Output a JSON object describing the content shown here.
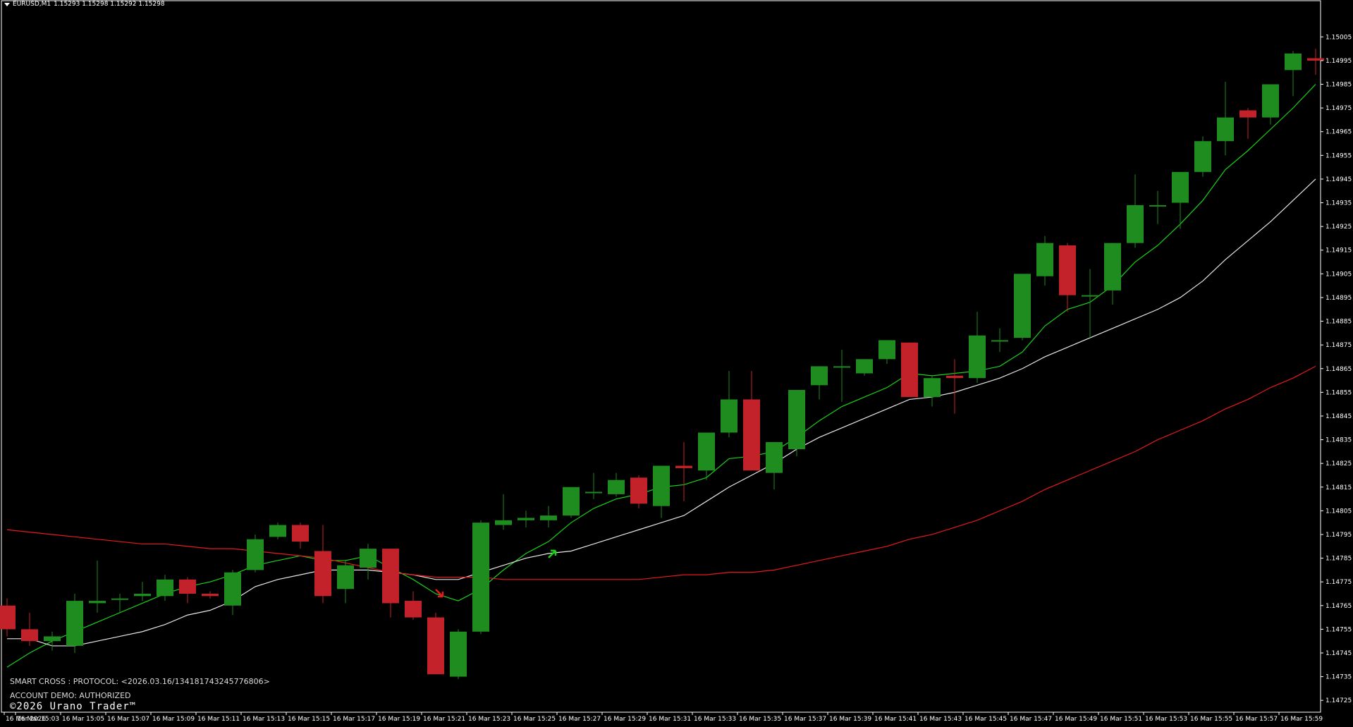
{
  "header": {
    "symbol": "EURUSD,M1",
    "ohlc": "1.15293 1.15298 1.15292 1.15298"
  },
  "footer": {
    "protocol": "SMART CROSS : PROTOCOL: <2026.03.16/13418174324577680​6>",
    "account": "ACCOUNT DEMO: AUTHORIZED",
    "copyright": "©2026 Urano Trader™"
  },
  "colors": {
    "background": "#000000",
    "axis": "#ffffff",
    "bull": "#1e8c1e",
    "bear": "#c4222a",
    "fast_ma": "#19d219",
    "mid_ma": "#e6e6e6",
    "slow_ma": "#e61a1a"
  },
  "chart_data": {
    "type": "candlestick",
    "symbol": "EURUSD",
    "timeframe": "M1",
    "y_ticks": [
      "1.15005",
      "1.14995",
      "1.14985",
      "1.14975",
      "1.14965",
      "1.14955",
      "1.14945",
      "1.14935",
      "1.14925",
      "1.14915",
      "1.14905",
      "1.14895",
      "1.14885",
      "1.14875",
      "1.14865",
      "1.14855",
      "1.14845",
      "1.14835",
      "1.14825",
      "1.14815",
      "1.14805",
      "1.14795",
      "1.14785",
      "1.14775",
      "1.14765",
      "1.14755",
      "1.14745",
      "1.14735",
      "1.14725"
    ],
    "x_ticks": [
      "16 Mar 2026",
      "16 Mar 15:03",
      "16 Mar 15:05",
      "16 Mar 15:07",
      "16 Mar 15:09",
      "16 Mar 15:11",
      "16 Mar 15:13",
      "16 Mar 15:15",
      "16 Mar 15:17",
      "16 Mar 15:19",
      "16 Mar 15:21",
      "16 Mar 15:23",
      "16 Mar 15:25",
      "16 Mar 15:27",
      "16 Mar 15:29",
      "16 Mar 15:31",
      "16 Mar 15:33",
      "16 Mar 15:35",
      "16 Mar 15:37",
      "16 Mar 15:39",
      "16 Mar 15:41",
      "16 Mar 15:43",
      "16 Mar 15:45",
      "16 Mar 15:47",
      "16 Mar 15:49",
      "16 Mar 15:51",
      "16 Mar 15:53",
      "16 Mar 15:55",
      "16 Mar 15:57",
      "16 Mar 15:59"
    ],
    "ylim": [
      1.1472,
      1.15017
    ],
    "candles": [
      {
        "o": 1.14765,
        "h": 1.14768,
        "l": 1.14752,
        "c": 1.14755
      },
      {
        "o": 1.14755,
        "h": 1.14762,
        "l": 1.14748,
        "c": 1.1475
      },
      {
        "o": 1.1475,
        "h": 1.14754,
        "l": 1.14746,
        "c": 1.14752
      },
      {
        "o": 1.14748,
        "h": 1.1477,
        "l": 1.14745,
        "c": 1.14767
      },
      {
        "o": 1.14766,
        "h": 1.14784,
        "l": 1.14762,
        "c": 1.14767
      },
      {
        "o": 1.14768,
        "h": 1.1477,
        "l": 1.14762,
        "c": 1.14768
      },
      {
        "o": 1.14769,
        "h": 1.14775,
        "l": 1.14767,
        "c": 1.1477
      },
      {
        "o": 1.14769,
        "h": 1.14778,
        "l": 1.14767,
        "c": 1.14776
      },
      {
        "o": 1.14776,
        "h": 1.14777,
        "l": 1.14766,
        "c": 1.1477
      },
      {
        "o": 1.1477,
        "h": 1.14771,
        "l": 1.14768,
        "c": 1.14769
      },
      {
        "o": 1.14765,
        "h": 1.1478,
        "l": 1.14761,
        "c": 1.14779
      },
      {
        "o": 1.1478,
        "h": 1.14795,
        "l": 1.14779,
        "c": 1.14793
      },
      {
        "o": 1.14794,
        "h": 1.148,
        "l": 1.14793,
        "c": 1.14799
      },
      {
        "o": 1.14799,
        "h": 1.148,
        "l": 1.14789,
        "c": 1.14792
      },
      {
        "o": 1.14788,
        "h": 1.14799,
        "l": 1.14766,
        "c": 1.14769
      },
      {
        "o": 1.14772,
        "h": 1.14784,
        "l": 1.14766,
        "c": 1.14782
      },
      {
        "o": 1.14781,
        "h": 1.14791,
        "l": 1.14776,
        "c": 1.14789
      },
      {
        "o": 1.14789,
        "h": 1.14789,
        "l": 1.1476,
        "c": 1.14766
      },
      {
        "o": 1.14767,
        "h": 1.14771,
        "l": 1.14759,
        "c": 1.1476
      },
      {
        "o": 1.1476,
        "h": 1.14762,
        "l": 1.14736,
        "c": 1.14736
      },
      {
        "o": 1.14735,
        "h": 1.14755,
        "l": 1.14734,
        "c": 1.14754
      },
      {
        "o": 1.14754,
        "h": 1.14801,
        "l": 1.14753,
        "c": 1.148
      },
      {
        "o": 1.14799,
        "h": 1.14812,
        "l": 1.14797,
        "c": 1.14801
      },
      {
        "o": 1.14801,
        "h": 1.14805,
        "l": 1.14798,
        "c": 1.14802
      },
      {
        "o": 1.14801,
        "h": 1.14807,
        "l": 1.14798,
        "c": 1.14803
      },
      {
        "o": 1.14803,
        "h": 1.14815,
        "l": 1.14802,
        "c": 1.14815
      },
      {
        "o": 1.14813,
        "h": 1.14821,
        "l": 1.1481,
        "c": 1.14813
      },
      {
        "o": 1.14812,
        "h": 1.14821,
        "l": 1.14811,
        "c": 1.14818
      },
      {
        "o": 1.14819,
        "h": 1.1482,
        "l": 1.14806,
        "c": 1.14808
      },
      {
        "o": 1.14807,
        "h": 1.14823,
        "l": 1.14802,
        "c": 1.14824
      },
      {
        "o": 1.14824,
        "h": 1.14834,
        "l": 1.14809,
        "c": 1.14823
      },
      {
        "o": 1.14822,
        "h": 1.14838,
        "l": 1.14818,
        "c": 1.14838
      },
      {
        "o": 1.14838,
        "h": 1.14864,
        "l": 1.14836,
        "c": 1.14852
      },
      {
        "o": 1.14852,
        "h": 1.14864,
        "l": 1.14822,
        "c": 1.14822
      },
      {
        "o": 1.14821,
        "h": 1.14834,
        "l": 1.14814,
        "c": 1.14834
      },
      {
        "o": 1.14831,
        "h": 1.14856,
        "l": 1.14828,
        "c": 1.14856
      },
      {
        "o": 1.14858,
        "h": 1.14866,
        "l": 1.14852,
        "c": 1.14866
      },
      {
        "o": 1.14866,
        "h": 1.14873,
        "l": 1.14851,
        "c": 1.14866
      },
      {
        "o": 1.14863,
        "h": 1.14869,
        "l": 1.14862,
        "c": 1.14869
      },
      {
        "o": 1.14869,
        "h": 1.14877,
        "l": 1.14867,
        "c": 1.14877
      },
      {
        "o": 1.14876,
        "h": 1.14876,
        "l": 1.14853,
        "c": 1.14853
      },
      {
        "o": 1.14853,
        "h": 1.14862,
        "l": 1.14849,
        "c": 1.14861
      },
      {
        "o": 1.14862,
        "h": 1.14869,
        "l": 1.14846,
        "c": 1.14861
      },
      {
        "o": 1.14861,
        "h": 1.14889,
        "l": 1.14859,
        "c": 1.14879
      },
      {
        "o": 1.14877,
        "h": 1.14882,
        "l": 1.14872,
        "c": 1.14877
      },
      {
        "o": 1.14878,
        "h": 1.14905,
        "l": 1.14877,
        "c": 1.14905
      },
      {
        "o": 1.14904,
        "h": 1.14921,
        "l": 1.149,
        "c": 1.14918
      },
      {
        "o": 1.14917,
        "h": 1.14918,
        "l": 1.14889,
        "c": 1.14896
      },
      {
        "o": 1.14896,
        "h": 1.14907,
        "l": 1.14878,
        "c": 1.14896
      },
      {
        "o": 1.14898,
        "h": 1.14918,
        "l": 1.14892,
        "c": 1.14918
      },
      {
        "o": 1.14918,
        "h": 1.14947,
        "l": 1.14916,
        "c": 1.14934
      },
      {
        "o": 1.14934,
        "h": 1.1494,
        "l": 1.14926,
        "c": 1.14934
      },
      {
        "o": 1.14935,
        "h": 1.14948,
        "l": 1.14924,
        "c": 1.14948
      },
      {
        "o": 1.14948,
        "h": 1.14963,
        "l": 1.14946,
        "c": 1.14961
      },
      {
        "o": 1.14961,
        "h": 1.14986,
        "l": 1.14955,
        "c": 1.14971
      },
      {
        "o": 1.14974,
        "h": 1.14975,
        "l": 1.14962,
        "c": 1.14971
      },
      {
        "o": 1.14971,
        "h": 1.14985,
        "l": 1.14968,
        "c": 1.14985
      },
      {
        "o": 1.14991,
        "h": 1.14999,
        "l": 1.1498,
        "c": 1.14998
      },
      {
        "o": 1.14996,
        "h": 1.15,
        "l": 1.14989,
        "c": 1.14995
      }
    ],
    "series": [
      {
        "name": "",
        "color": "#19d219",
        "values": [
          1.14739,
          1.14745,
          1.1475,
          1.14754,
          1.14758,
          1.14762,
          1.14766,
          1.1477,
          1.14773,
          1.14775,
          1.14778,
          1.14782,
          1.14784,
          1.14786,
          1.14784,
          1.14784,
          1.14786,
          1.14781,
          1.14776,
          1.1477,
          1.14767,
          1.14772,
          1.1478,
          1.14787,
          1.14792,
          1.148,
          1.14806,
          1.1481,
          1.14812,
          1.14815,
          1.14816,
          1.14819,
          1.14827,
          1.14828,
          1.1483,
          1.14836,
          1.14843,
          1.14849,
          1.14853,
          1.14857,
          1.14863,
          1.14862,
          1.14863,
          1.14864,
          1.14866,
          1.14872,
          1.14883,
          1.1489,
          1.14893,
          1.149,
          1.1491,
          1.14917,
          1.14926,
          1.14936,
          1.14949,
          1.14957,
          1.14966,
          1.14975,
          1.14985
        ]
      },
      {
        "name": "",
        "color": "#e6e6e6",
        "values": [
          1.14751,
          1.14751,
          1.14748,
          1.14748,
          1.1475,
          1.14752,
          1.14754,
          1.14757,
          1.14761,
          1.14763,
          1.14767,
          1.14773,
          1.14776,
          1.14778,
          1.1478,
          1.1478,
          1.1478,
          1.14779,
          1.14778,
          1.14776,
          1.14776,
          1.14779,
          1.14782,
          1.14785,
          1.14787,
          1.14788,
          1.14791,
          1.14794,
          1.14797,
          1.148,
          1.14803,
          1.14809,
          1.14815,
          1.1482,
          1.14825,
          1.14831,
          1.14836,
          1.1484,
          1.14844,
          1.14848,
          1.14852,
          1.14853,
          1.14855,
          1.14858,
          1.14861,
          1.14865,
          1.1487,
          1.14874,
          1.14878,
          1.14882,
          1.14886,
          1.1489,
          1.14895,
          1.14902,
          1.14911,
          1.14919,
          1.14927,
          1.14936,
          1.14945
        ]
      },
      {
        "name": "",
        "color": "#e61a1a",
        "values": [
          1.14797,
          1.14796,
          1.14795,
          1.14794,
          1.14793,
          1.14792,
          1.14791,
          1.14791,
          1.1479,
          1.14789,
          1.14789,
          1.14788,
          1.14787,
          1.14786,
          1.14785,
          1.14783,
          1.14781,
          1.14779,
          1.14778,
          1.14777,
          1.14777,
          1.14777,
          1.14776,
          1.14776,
          1.14776,
          1.14776,
          1.14776,
          1.14776,
          1.14776,
          1.14777,
          1.14778,
          1.14778,
          1.14779,
          1.14779,
          1.1478,
          1.14782,
          1.14784,
          1.14786,
          1.14788,
          1.1479,
          1.14793,
          1.14795,
          1.14798,
          1.14801,
          1.14805,
          1.14809,
          1.14814,
          1.14818,
          1.14822,
          1.14826,
          1.1483,
          1.14835,
          1.14839,
          1.14843,
          1.14848,
          1.14852,
          1.14857,
          1.14861,
          1.14866
        ]
      }
    ],
    "signals": [
      {
        "type": "sell",
        "candle_index": 19,
        "price": 1.1477,
        "color": "#e61a1a"
      },
      {
        "type": "buy",
        "candle_index": 24,
        "price": 1.14787,
        "color": "#19d219"
      }
    ]
  }
}
